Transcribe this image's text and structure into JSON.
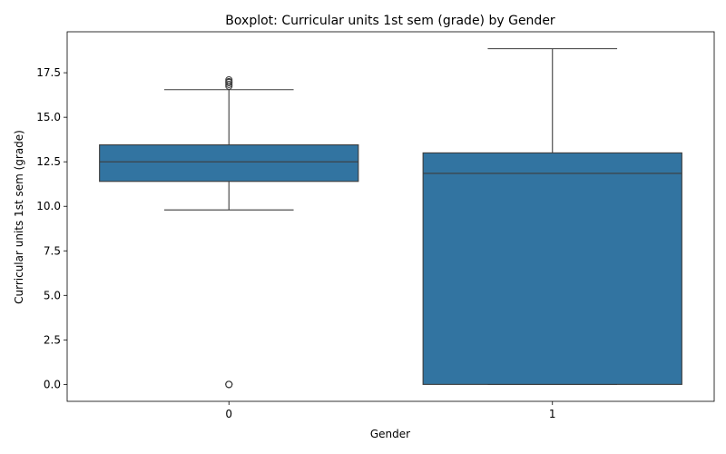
{
  "chart_data": {
    "type": "box",
    "title": "Boxplot: Curricular units 1st sem (grade) by Gender",
    "xlabel": "Gender",
    "ylabel": "Curricular units 1st sem (grade)",
    "ylim": [
      -0.95,
      19.8
    ],
    "yticks": [
      "0.0",
      "2.5",
      "5.0",
      "7.5",
      "10.0",
      "12.5",
      "15.0",
      "17.5"
    ],
    "ytick_values": [
      0,
      2.5,
      5,
      7.5,
      10,
      12.5,
      15,
      17.5
    ],
    "categories": [
      "0",
      "1"
    ],
    "box_color": "#3274a1",
    "edge_color": "#3d3d3d",
    "boxes": [
      {
        "category": "0",
        "whisker_low": 9.8,
        "q1": 11.4,
        "median": 12.5,
        "q3": 13.45,
        "whisker_high": 16.55,
        "outliers": [
          0,
          0,
          0,
          16.75,
          16.85,
          16.95,
          17.0,
          17.1
        ]
      },
      {
        "category": "1",
        "whisker_low": 0,
        "q1": 0,
        "median": 11.85,
        "q3": 13.0,
        "whisker_high": 18.85,
        "outliers": []
      }
    ],
    "grid": false,
    "legend": "none"
  }
}
